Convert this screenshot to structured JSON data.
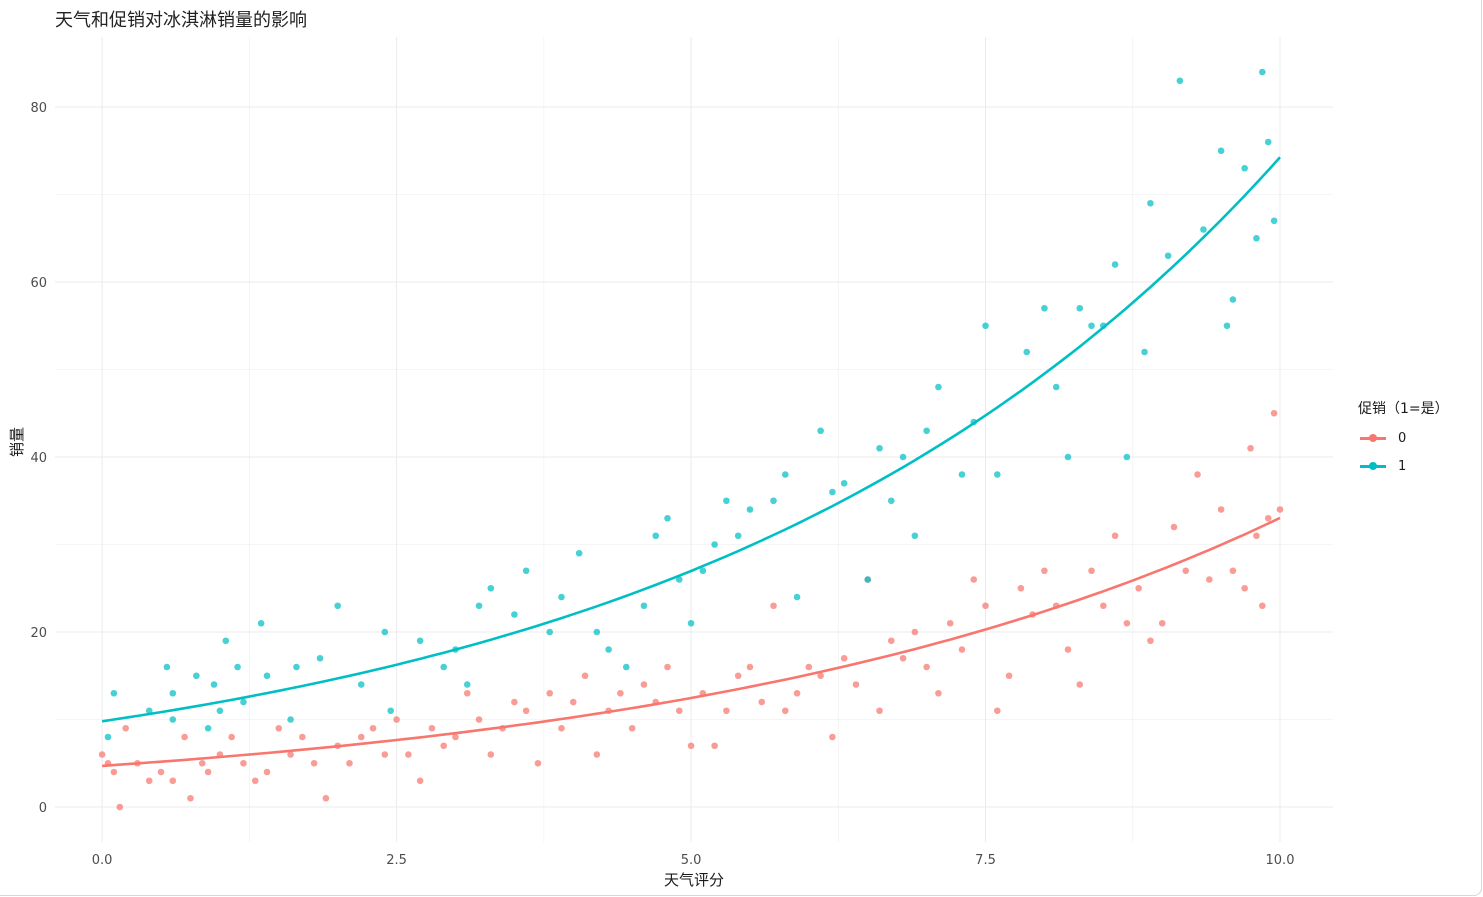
{
  "title": "天气和促销对冰淇淋销量的影响",
  "chart_data": {
    "type": "scatter",
    "title": "天气和促销对冰淇淋销量的影响",
    "xlabel": "天气评分",
    "ylabel": "销量",
    "xlim": [
      -0.4,
      10.45
    ],
    "ylim": [
      -4,
      88
    ],
    "x_ticks": [
      0,
      2.5,
      5,
      7.5,
      10
    ],
    "x_tick_labels": [
      "0.0",
      "2.5",
      "5.0",
      "7.5",
      "10.0"
    ],
    "y_ticks": [
      0,
      20,
      40,
      60,
      80
    ],
    "y_tick_labels": [
      "0",
      "20",
      "40",
      "60",
      "80"
    ],
    "grid": true,
    "legend": {
      "title": "促销（1=是）",
      "position": "right"
    },
    "series": [
      {
        "name": "0",
        "color": "#F8766D",
        "trend": {
          "type": "exponential",
          "a": 4.7,
          "b": 0.195
        },
        "points": [
          [
            0.0,
            6
          ],
          [
            0.05,
            5
          ],
          [
            0.1,
            4
          ],
          [
            0.15,
            0
          ],
          [
            0.2,
            9
          ],
          [
            0.3,
            5
          ],
          [
            0.4,
            3
          ],
          [
            0.5,
            4
          ],
          [
            0.6,
            3
          ],
          [
            0.7,
            8
          ],
          [
            0.75,
            1
          ],
          [
            0.85,
            5
          ],
          [
            0.9,
            4
          ],
          [
            1.0,
            6
          ],
          [
            1.1,
            8
          ],
          [
            1.2,
            5
          ],
          [
            1.3,
            3
          ],
          [
            1.4,
            4
          ],
          [
            1.5,
            9
          ],
          [
            1.6,
            6
          ],
          [
            1.7,
            8
          ],
          [
            1.8,
            5
          ],
          [
            1.9,
            1
          ],
          [
            2.0,
            7
          ],
          [
            2.1,
            5
          ],
          [
            2.2,
            8
          ],
          [
            2.3,
            9
          ],
          [
            2.4,
            6
          ],
          [
            2.5,
            10
          ],
          [
            2.6,
            6
          ],
          [
            2.7,
            3
          ],
          [
            2.8,
            9
          ],
          [
            2.9,
            7
          ],
          [
            3.0,
            8
          ],
          [
            3.1,
            13
          ],
          [
            3.2,
            10
          ],
          [
            3.3,
            6
          ],
          [
            3.4,
            9
          ],
          [
            3.5,
            12
          ],
          [
            3.6,
            11
          ],
          [
            3.7,
            5
          ],
          [
            3.8,
            13
          ],
          [
            3.9,
            9
          ],
          [
            4.0,
            12
          ],
          [
            4.1,
            15
          ],
          [
            4.2,
            6
          ],
          [
            4.3,
            11
          ],
          [
            4.4,
            13
          ],
          [
            4.5,
            9
          ],
          [
            4.6,
            14
          ],
          [
            4.7,
            12
          ],
          [
            4.8,
            16
          ],
          [
            4.9,
            11
          ],
          [
            5.0,
            7
          ],
          [
            5.1,
            13
          ],
          [
            5.2,
            7
          ],
          [
            5.3,
            11
          ],
          [
            5.4,
            15
          ],
          [
            5.5,
            16
          ],
          [
            5.6,
            12
          ],
          [
            5.7,
            23
          ],
          [
            5.8,
            11
          ],
          [
            5.9,
            13
          ],
          [
            6.0,
            16
          ],
          [
            6.1,
            15
          ],
          [
            6.2,
            8
          ],
          [
            6.3,
            17
          ],
          [
            6.4,
            14
          ],
          [
            6.5,
            26
          ],
          [
            6.6,
            11
          ],
          [
            6.7,
            19
          ],
          [
            6.8,
            17
          ],
          [
            6.9,
            20
          ],
          [
            7.0,
            16
          ],
          [
            7.1,
            13
          ],
          [
            7.2,
            21
          ],
          [
            7.3,
            18
          ],
          [
            7.4,
            26
          ],
          [
            7.5,
            23
          ],
          [
            7.6,
            11
          ],
          [
            7.7,
            15
          ],
          [
            7.8,
            25
          ],
          [
            7.9,
            22
          ],
          [
            8.0,
            27
          ],
          [
            8.1,
            23
          ],
          [
            8.2,
            18
          ],
          [
            8.3,
            14
          ],
          [
            8.4,
            27
          ],
          [
            8.5,
            23
          ],
          [
            8.6,
            31
          ],
          [
            8.7,
            21
          ],
          [
            8.8,
            25
          ],
          [
            8.9,
            19
          ],
          [
            9.0,
            21
          ],
          [
            9.1,
            32
          ],
          [
            9.2,
            27
          ],
          [
            9.3,
            38
          ],
          [
            9.4,
            26
          ],
          [
            9.5,
            34
          ],
          [
            9.6,
            27
          ],
          [
            9.7,
            25
          ],
          [
            9.75,
            41
          ],
          [
            9.8,
            31
          ],
          [
            9.85,
            23
          ],
          [
            9.9,
            33
          ],
          [
            9.95,
            45
          ],
          [
            10.0,
            34
          ]
        ]
      },
      {
        "name": "1",
        "color": "#00BFC4",
        "trend": {
          "type": "exponential",
          "a": 9.8,
          "b": 0.2025
        },
        "points": [
          [
            0.05,
            8
          ],
          [
            0.1,
            13
          ],
          [
            0.4,
            11
          ],
          [
            0.55,
            16
          ],
          [
            0.6,
            13
          ],
          [
            0.6,
            10
          ],
          [
            0.8,
            15
          ],
          [
            0.9,
            9
          ],
          [
            0.95,
            14
          ],
          [
            1.0,
            11
          ],
          [
            1.05,
            19
          ],
          [
            1.15,
            16
          ],
          [
            1.2,
            12
          ],
          [
            1.35,
            21
          ],
          [
            1.4,
            15
          ],
          [
            1.6,
            10
          ],
          [
            1.65,
            16
          ],
          [
            1.85,
            17
          ],
          [
            2.0,
            23
          ],
          [
            2.2,
            14
          ],
          [
            2.4,
            20
          ],
          [
            2.45,
            11
          ],
          [
            2.7,
            19
          ],
          [
            2.9,
            16
          ],
          [
            3.0,
            18
          ],
          [
            3.1,
            14
          ],
          [
            3.2,
            23
          ],
          [
            3.3,
            25
          ],
          [
            3.5,
            22
          ],
          [
            3.6,
            27
          ],
          [
            3.8,
            20
          ],
          [
            3.9,
            24
          ],
          [
            4.05,
            29
          ],
          [
            4.2,
            20
          ],
          [
            4.3,
            18
          ],
          [
            4.45,
            16
          ],
          [
            4.6,
            23
          ],
          [
            4.7,
            31
          ],
          [
            4.8,
            33
          ],
          [
            4.9,
            26
          ],
          [
            5.0,
            21
          ],
          [
            5.1,
            27
          ],
          [
            5.2,
            30
          ],
          [
            5.3,
            35
          ],
          [
            5.4,
            31
          ],
          [
            5.5,
            34
          ],
          [
            5.7,
            35
          ],
          [
            5.8,
            38
          ],
          [
            5.9,
            24
          ],
          [
            6.1,
            43
          ],
          [
            6.2,
            36
          ],
          [
            6.3,
            37
          ],
          [
            6.5,
            26
          ],
          [
            6.6,
            41
          ],
          [
            6.7,
            35
          ],
          [
            6.8,
            40
          ],
          [
            6.9,
            31
          ],
          [
            7.0,
            43
          ],
          [
            7.1,
            48
          ],
          [
            7.3,
            38
          ],
          [
            7.4,
            44
          ],
          [
            7.5,
            55
          ],
          [
            7.6,
            38
          ],
          [
            7.85,
            52
          ],
          [
            8.0,
            57
          ],
          [
            8.1,
            48
          ],
          [
            8.2,
            40
          ],
          [
            8.3,
            57
          ],
          [
            8.4,
            55
          ],
          [
            8.5,
            55
          ],
          [
            8.6,
            62
          ],
          [
            8.7,
            40
          ],
          [
            8.85,
            52
          ],
          [
            8.9,
            69
          ],
          [
            9.05,
            63
          ],
          [
            9.15,
            83
          ],
          [
            9.35,
            66
          ],
          [
            9.5,
            75
          ],
          [
            9.55,
            55
          ],
          [
            9.6,
            58
          ],
          [
            9.7,
            73
          ],
          [
            9.8,
            65
          ],
          [
            9.85,
            84
          ],
          [
            9.9,
            76
          ],
          [
            9.95,
            67
          ]
        ]
      }
    ]
  }
}
